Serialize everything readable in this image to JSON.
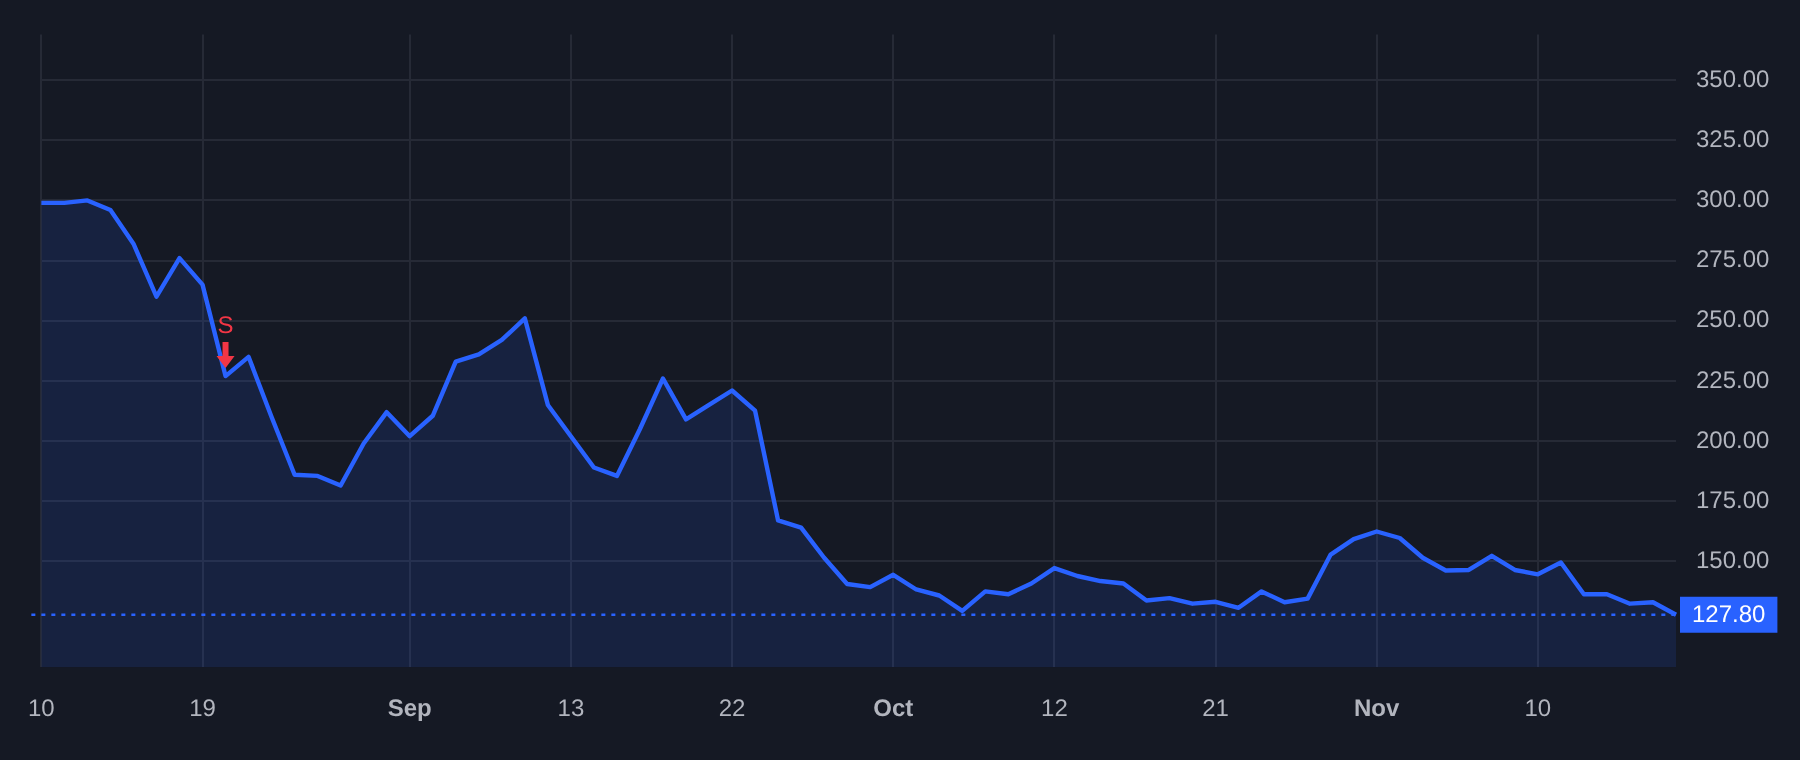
{
  "chart_data": {
    "type": "area",
    "categories": [
      "10",
      null,
      null,
      null,
      null,
      null,
      null,
      "19",
      null,
      null,
      null,
      null,
      null,
      null,
      null,
      null,
      "Sep",
      null,
      null,
      null,
      null,
      null,
      null,
      "13",
      null,
      null,
      null,
      null,
      null,
      null,
      "22",
      null,
      null,
      null,
      null,
      null,
      null,
      "Oct",
      null,
      null,
      null,
      null,
      null,
      null,
      "12",
      null,
      null,
      null,
      null,
      null,
      null,
      "21",
      null,
      null,
      null,
      null,
      null,
      null,
      "Nov",
      null,
      null,
      null,
      null,
      null,
      null,
      "10",
      null,
      null,
      null,
      null,
      null,
      null
    ],
    "series": [
      {
        "color": "#2962ff",
        "values": [
          299,
          299,
          300,
          296,
          282,
          260,
          276,
          265,
          227,
          235,
          210,
          186,
          185.5,
          181.5,
          199,
          212,
          202,
          210.5,
          233,
          236,
          242,
          251,
          215,
          202,
          189,
          185.5,
          205,
          226,
          209,
          215,
          221,
          212.6,
          167,
          164,
          151.5,
          140.6,
          139.3,
          144.4,
          138.3,
          135.8,
          129.4,
          137.5,
          136.3,
          140.8,
          147.2,
          143.9,
          141.8,
          140.8,
          133.7,
          134.7,
          132.4,
          133.2,
          130.7,
          137.5,
          133,
          134.5,
          152.8,
          159.2,
          162.4,
          159.7,
          151.5,
          146.2,
          146.4,
          152.3,
          146.4,
          144.6,
          149.5,
          136.3,
          136.3,
          132.4,
          133,
          127.8
        ]
      }
    ],
    "ylim": [
      106,
      369
    ],
    "yticks": [
      {
        "value": 150,
        "label": "150.00"
      },
      {
        "value": 175,
        "label": "175.00"
      },
      {
        "value": 200,
        "label": "200.00"
      },
      {
        "value": 225,
        "label": "225.00"
      },
      {
        "value": 250,
        "label": "250.00"
      },
      {
        "value": 275,
        "label": "275.00"
      },
      {
        "value": 300,
        "label": "300.00"
      },
      {
        "value": 325,
        "label": "325.00"
      },
      {
        "value": 350,
        "label": "350.00"
      }
    ],
    "ref_lines": [
      {
        "axis": "y",
        "value": 127.8,
        "label": "127.80",
        "color": "#2962ff",
        "line_style": "dotted"
      }
    ],
    "annotations": [
      {
        "text": "S",
        "y": 227
      }
    ],
    "grid": true,
    "legend": false,
    "marker": "none",
    "line_style": "solid"
  }
}
